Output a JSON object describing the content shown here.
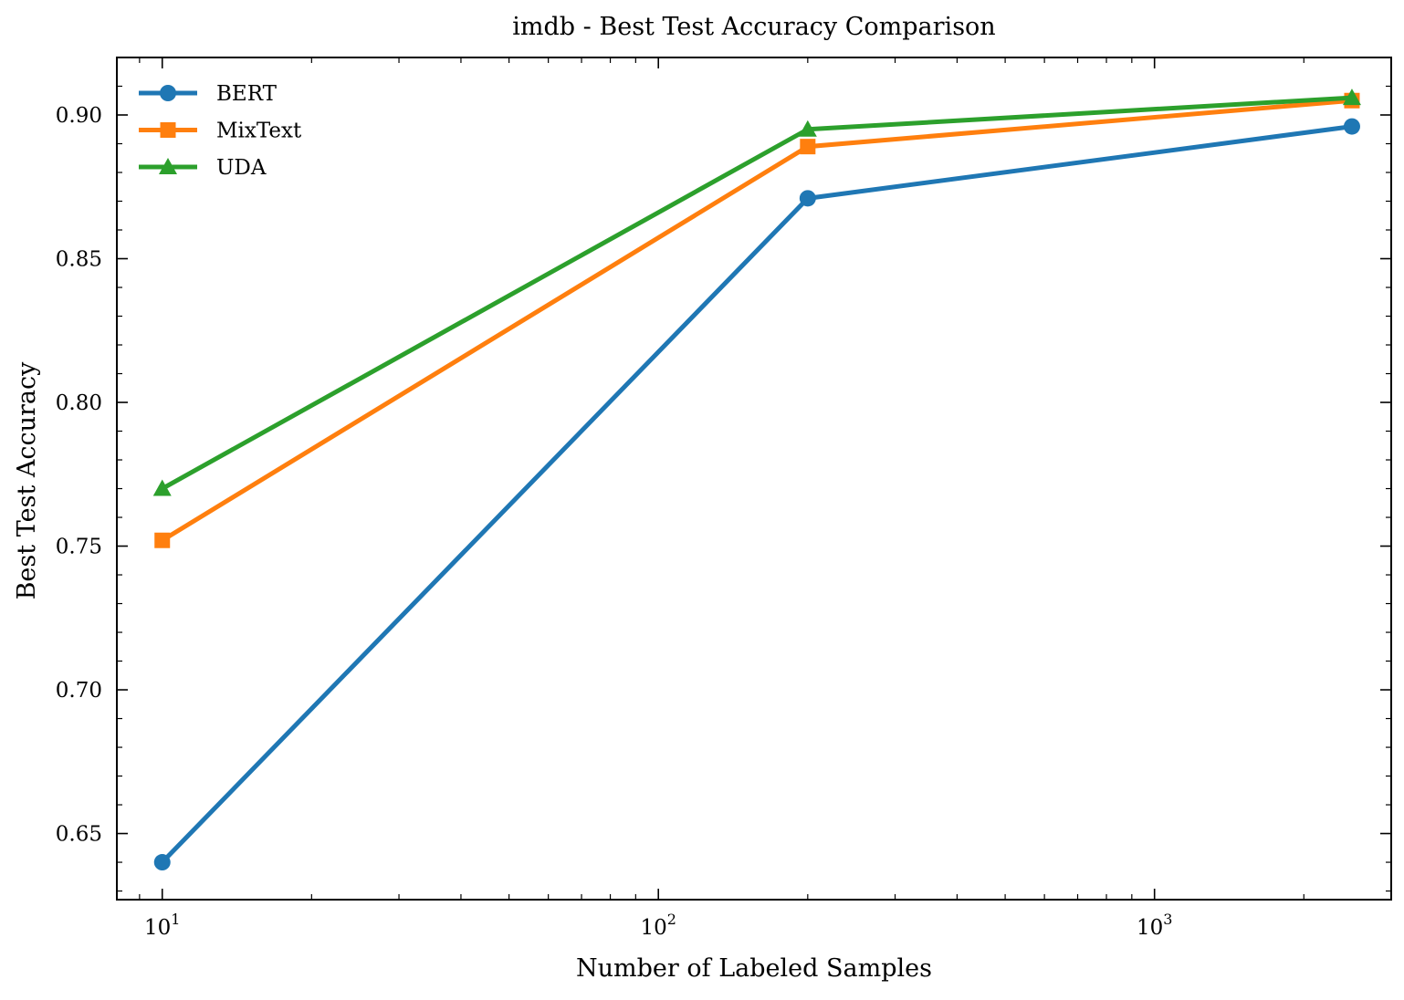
{
  "chart_data": {
    "type": "line",
    "title": "imdb - Best Test Accuracy Comparison",
    "xlabel": "Number of Labeled Samples",
    "ylabel": "Best Test Accuracy",
    "x_scale": "log",
    "x": [
      10,
      200,
      2500
    ],
    "x_ticks": [
      {
        "value": 10,
        "base": "10",
        "exp": "1"
      },
      {
        "value": 100,
        "base": "10",
        "exp": "2"
      },
      {
        "value": 1000,
        "base": "10",
        "exp": "3"
      }
    ],
    "xlim": [
      8.1,
      3000
    ],
    "ylim": [
      0.627,
      0.92
    ],
    "y_ticks": [
      {
        "value": 0.65,
        "label": "0.65"
      },
      {
        "value": 0.7,
        "label": "0.70"
      },
      {
        "value": 0.75,
        "label": "0.75"
      },
      {
        "value": 0.8,
        "label": "0.80"
      },
      {
        "value": 0.85,
        "label": "0.85"
      },
      {
        "value": 0.9,
        "label": "0.90"
      }
    ],
    "series": [
      {
        "name": "BERT",
        "color": "#1f77b4",
        "marker": "circle",
        "values": [
          0.64,
          0.871,
          0.896
        ]
      },
      {
        "name": "MixText",
        "color": "#ff7f0e",
        "marker": "square",
        "values": [
          0.752,
          0.889,
          0.905
        ]
      },
      {
        "name": "UDA",
        "color": "#2ca02c",
        "marker": "triangle",
        "values": [
          0.77,
          0.895,
          0.906
        ]
      }
    ],
    "legend_position": "top-left",
    "grid": false
  }
}
